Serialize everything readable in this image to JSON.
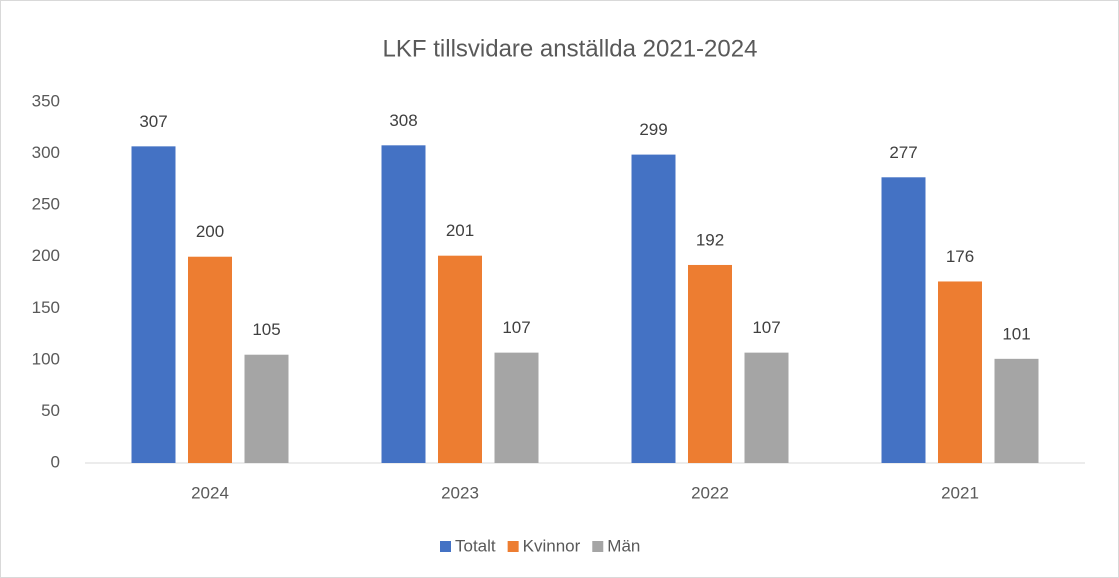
{
  "chart_data": {
    "type": "bar",
    "title": "LKF tillsvidare anställda 2021-2024",
    "categories": [
      "2024",
      "2023",
      "2022",
      "2021"
    ],
    "series": [
      {
        "name": "Totalt",
        "color": "#4472c4",
        "values": [
          307,
          308,
          299,
          277
        ]
      },
      {
        "name": "Kvinnor",
        "color": "#ed7d31",
        "values": [
          200,
          201,
          192,
          176
        ]
      },
      {
        "name": "Män",
        "color": "#a5a5a5",
        "values": [
          105,
          107,
          107,
          101
        ]
      }
    ],
    "ylim": [
      0,
      350
    ],
    "yticks": [
      0,
      50,
      100,
      150,
      200,
      250,
      300,
      350
    ],
    "grid": false,
    "legend": "bottom"
  }
}
